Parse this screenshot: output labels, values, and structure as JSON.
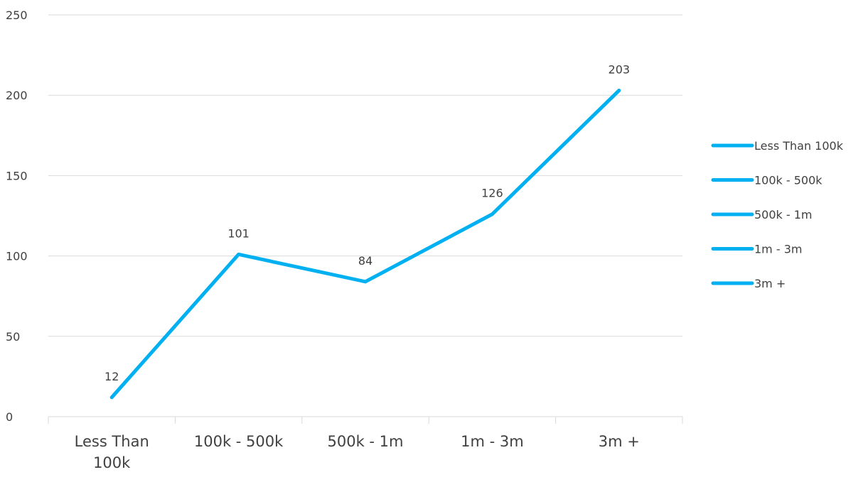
{
  "chart_data": {
    "type": "line",
    "categories": [
      "Less Than 100k",
      "100k - 500k",
      "500k - 1m",
      "1m - 3m",
      "3m +"
    ],
    "series": [
      {
        "values": [
          12,
          101,
          84,
          126,
          203
        ]
      }
    ],
    "data_labels": [
      "12",
      "101",
      "84",
      "126",
      "203"
    ],
    "yticks": [
      0,
      50,
      100,
      150,
      200,
      250
    ],
    "ylim": [
      0,
      250
    ],
    "grid": true,
    "legend": {
      "position": "right",
      "entries": [
        "Less Than 100k",
        "100k - 500k",
        "500k - 1m",
        "1m - 3m",
        "3m +"
      ]
    },
    "colors": {
      "line": "#00b0f0",
      "grid": "#d9d9d9",
      "text": "#404040"
    }
  }
}
